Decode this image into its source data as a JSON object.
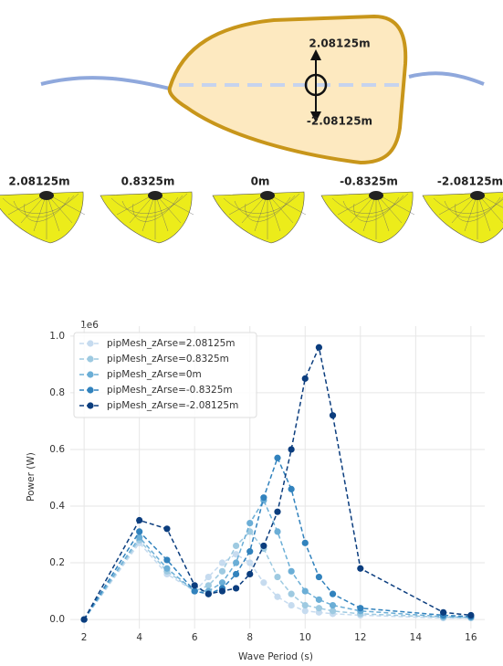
{
  "diagram": {
    "upper_label": "2.08125m",
    "lower_label": "-2.08125m",
    "mesh_labels": [
      "2.08125m",
      "0.8325m",
      "0m",
      "-0.8325m",
      "-2.08125m"
    ]
  },
  "chart_data": {
    "type": "line",
    "x_label": "Wave Period (s)",
    "y_label": "Power (W)",
    "y_offset_label": "1e6",
    "x": [
      2,
      4,
      5,
      6,
      6.5,
      7,
      7.5,
      8,
      8.5,
      9,
      9.5,
      10,
      10.5,
      11,
      12,
      15,
      16
    ],
    "series": [
      {
        "name": "pipMesh_zArse=2.08125m",
        "color": "#c6dbef",
        "values": [
          0,
          0.27,
          0.16,
          0.1,
          0.15,
          0.2,
          0.23,
          0.2,
          0.13,
          0.08,
          0.05,
          0.03,
          0.025,
          0.02,
          0.015,
          0.005,
          0.005
        ]
      },
      {
        "name": "pipMesh_zArse=0.8325m",
        "color": "#9ecae1",
        "values": [
          0,
          0.28,
          0.17,
          0.1,
          0.12,
          0.17,
          0.26,
          0.31,
          0.25,
          0.15,
          0.09,
          0.05,
          0.04,
          0.03,
          0.02,
          0.008,
          0.006
        ]
      },
      {
        "name": "pipMesh_zArse=0m",
        "color": "#6baed6",
        "values": [
          0,
          0.29,
          0.18,
          0.1,
          0.1,
          0.13,
          0.2,
          0.34,
          0.42,
          0.31,
          0.17,
          0.1,
          0.07,
          0.05,
          0.03,
          0.01,
          0.008
        ]
      },
      {
        "name": "pipMesh_zArse=-0.8325m",
        "color": "#3182bd",
        "values": [
          0,
          0.31,
          0.21,
          0.1,
          0.09,
          0.11,
          0.16,
          0.24,
          0.43,
          0.57,
          0.46,
          0.27,
          0.15,
          0.09,
          0.04,
          0.015,
          0.01
        ]
      },
      {
        "name": "pipMesh_zArse=-2.08125m",
        "color": "#0b3d7e",
        "values": [
          0,
          0.35,
          0.32,
          0.12,
          0.09,
          0.1,
          0.11,
          0.16,
          0.26,
          0.38,
          0.6,
          0.85,
          0.96,
          0.72,
          0.18,
          0.025,
          0.015
        ]
      }
    ],
    "xlim": [
      1.5,
      16.5
    ],
    "ylim": [
      -0.032,
      1.035
    ],
    "xticks": [
      2,
      4,
      6,
      8,
      10,
      12,
      14,
      16
    ],
    "yticks": [
      {
        "value": 0,
        "label": "0.0"
      },
      {
        "value": 0.2,
        "label": "0.2"
      },
      {
        "value": 0.4,
        "label": "0.4"
      },
      {
        "value": 0.6,
        "label": "0.6"
      },
      {
        "value": 0.8,
        "label": "0.8"
      },
      {
        "value": 1,
        "label": "1.0"
      }
    ],
    "grid": true,
    "legend": "upper left"
  }
}
